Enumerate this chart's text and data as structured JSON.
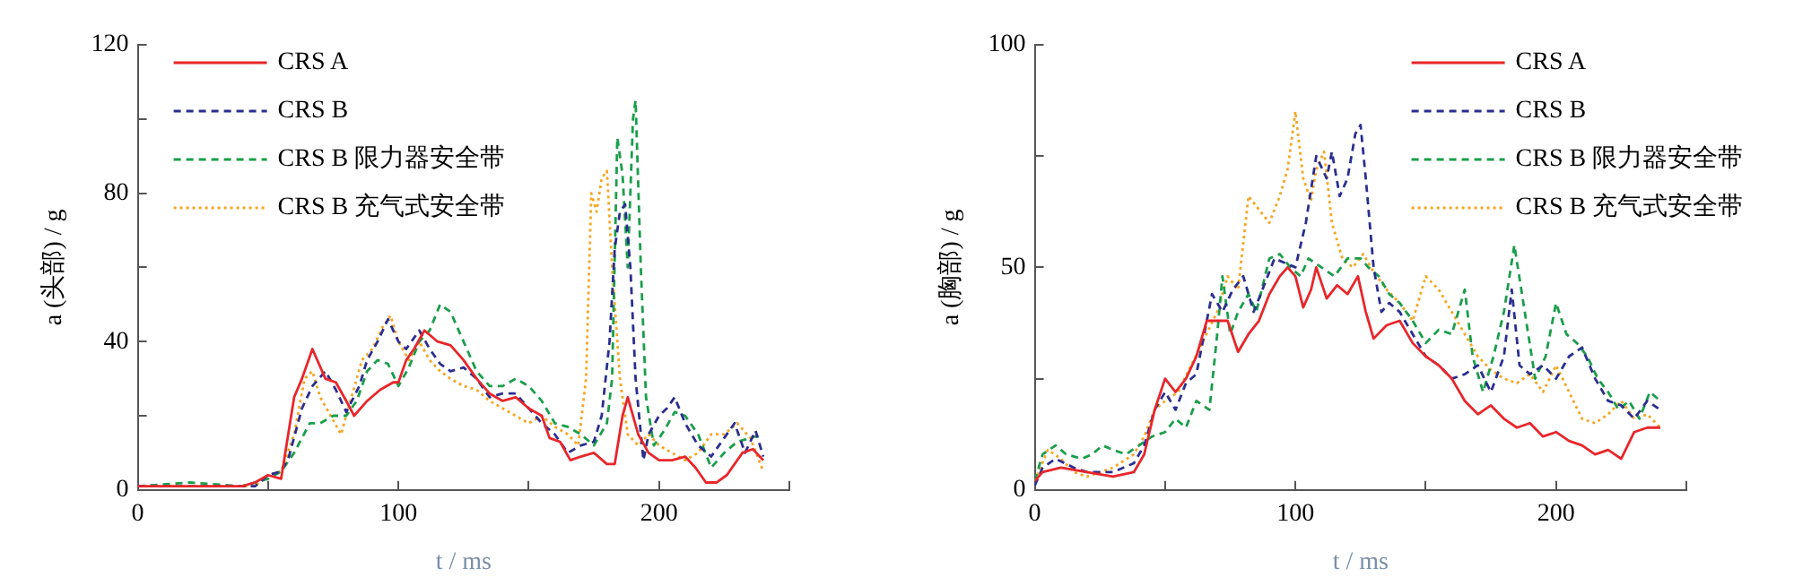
{
  "chart_data": [
    {
      "type": "line",
      "xlabel": "t / ms",
      "ylabel": "a (头部) / g",
      "xlim": [
        0,
        250
      ],
      "xticks": [
        0,
        {
          "value": 50,
          "label": null
        },
        100,
        {
          "value": 150,
          "label": null
        },
        200,
        {
          "value": 250,
          "label": null
        }
      ],
      "ylim": [
        0,
        120
      ],
      "yticks": [
        0,
        {
          "value": 20,
          "label": null
        },
        40,
        {
          "value": 60,
          "label": null
        },
        80,
        {
          "value": 100,
          "label": null
        },
        120
      ],
      "grid": false,
      "legend": "top left",
      "series": [
        {
          "name": "CRS A",
          "color": "#e8262b",
          "line_style": "solid",
          "x": [
            0,
            20,
            40,
            45,
            50,
            55,
            60,
            63,
            67,
            72,
            76,
            80,
            83,
            88,
            93,
            98,
            100,
            103,
            106,
            110,
            115,
            120,
            125,
            130,
            135,
            140,
            145,
            150,
            155,
            158,
            162,
            166,
            170,
            175,
            180,
            183,
            186,
            188,
            192,
            196,
            200,
            205,
            210,
            214,
            218,
            222,
            226,
            232,
            236,
            240
          ],
          "values": [
            1,
            1,
            1,
            2,
            4,
            3,
            25,
            30,
            38,
            30,
            29,
            24,
            20,
            24,
            27,
            29,
            29,
            35,
            38,
            43,
            40,
            39,
            35,
            30,
            26,
            24,
            25,
            22,
            20,
            14,
            13,
            8,
            9,
            10,
            7,
            7,
            20,
            25,
            15,
            10,
            8,
            8,
            9,
            6,
            2,
            2,
            4,
            10,
            11,
            8
          ]
        },
        {
          "name": "CRS B",
          "color": "#2b2e8f",
          "line_style": "dashed",
          "x": [
            0,
            20,
            45,
            50,
            55,
            58,
            63,
            67,
            72,
            76,
            80,
            85,
            88,
            92,
            96,
            100,
            103,
            108,
            112,
            116,
            120,
            125,
            130,
            135,
            140,
            145,
            150,
            155,
            160,
            165,
            170,
            175,
            178,
            181,
            183,
            185,
            187,
            189,
            191,
            194,
            196,
            200,
            203,
            206,
            210,
            215,
            220,
            225,
            229,
            233,
            237,
            240
          ],
          "values": [
            1,
            1,
            1,
            4,
            5,
            9,
            22,
            28,
            32,
            27,
            21,
            28,
            35,
            40,
            46,
            40,
            38,
            43,
            38,
            34,
            32,
            33,
            30,
            25,
            26,
            26,
            22,
            18,
            15,
            10,
            12,
            13,
            20,
            40,
            65,
            75,
            77,
            60,
            30,
            8,
            15,
            20,
            22,
            25,
            18,
            12,
            9,
            14,
            18,
            10,
            16,
            9
          ]
        },
        {
          "name": "CRS B 限力器安全带",
          "color": "#1a9e4a",
          "line_style": "dashed",
          "x": [
            0,
            20,
            40,
            50,
            55,
            60,
            66,
            70,
            75,
            80,
            84,
            88,
            92,
            96,
            100,
            104,
            108,
            112,
            116,
            120,
            125,
            130,
            135,
            140,
            145,
            150,
            155,
            160,
            165,
            170,
            175,
            180,
            182,
            184,
            186,
            188,
            190,
            191,
            193,
            195,
            198,
            202,
            206,
            210,
            215,
            220,
            225,
            230,
            235,
            240
          ],
          "values": [
            1,
            2,
            1,
            3,
            5,
            10,
            18,
            18,
            20,
            20,
            24,
            32,
            35,
            34,
            28,
            33,
            40,
            43,
            50,
            48,
            40,
            32,
            28,
            28,
            30,
            28,
            24,
            18,
            17,
            15,
            12,
            18,
            30,
            95,
            85,
            60,
            100,
            105,
            60,
            25,
            12,
            16,
            21,
            20,
            15,
            6,
            10,
            13,
            14,
            15
          ]
        },
        {
          "name": "CRS B 充气式安全带",
          "color": "#f5a623",
          "line_style": "dotted",
          "x": [
            0,
            20,
            45,
            50,
            55,
            60,
            64,
            67,
            70,
            74,
            78,
            82,
            86,
            90,
            94,
            97,
            100,
            104,
            108,
            112,
            116,
            120,
            125,
            130,
            135,
            140,
            145,
            150,
            155,
            160,
            165,
            169,
            172,
            174,
            176,
            178,
            180,
            182,
            185,
            188,
            192,
            196,
            200,
            205,
            210,
            215,
            220,
            225,
            230,
            235,
            240
          ],
          "values": [
            1,
            1,
            1,
            4,
            5,
            15,
            30,
            32,
            25,
            20,
            15,
            25,
            35,
            38,
            44,
            47,
            40,
            35,
            40,
            35,
            32,
            30,
            28,
            27,
            24,
            22,
            20,
            18,
            20,
            17,
            15,
            12,
            30,
            80,
            75,
            84,
            86,
            60,
            30,
            15,
            12,
            15,
            12,
            10,
            8,
            10,
            15,
            15,
            18,
            14,
            5
          ]
        }
      ]
    },
    {
      "type": "line",
      "xlabel": "t / ms",
      "ylabel": "a (胸部) / g",
      "xlim": [
        0,
        250
      ],
      "xticks": [
        0,
        {
          "value": 50,
          "label": null
        },
        100,
        {
          "value": 150,
          "label": null
        },
        200,
        {
          "value": 250,
          "label": null
        }
      ],
      "ylim": [
        0,
        100
      ],
      "yticks": [
        0,
        {
          "value": 25,
          "label": null
        },
        50,
        {
          "value": 75,
          "label": null
        },
        100
      ],
      "grid": false,
      "legend": "top right",
      "series": [
        {
          "name": "CRS A",
          "color": "#e8262b",
          "line_style": "solid",
          "x": [
            0,
            3,
            10,
            20,
            30,
            38,
            42,
            46,
            50,
            54,
            58,
            62,
            66,
            70,
            74,
            78,
            82,
            86,
            90,
            94,
            97,
            100,
            103,
            106,
            108,
            112,
            116,
            120,
            124,
            127,
            130,
            135,
            140,
            145,
            150,
            155,
            160,
            165,
            170,
            175,
            180,
            185,
            190,
            195,
            200,
            205,
            210,
            215,
            220,
            225,
            230,
            235,
            240
          ],
          "values": [
            2,
            4,
            5,
            4,
            3,
            4,
            8,
            18,
            25,
            22,
            25,
            30,
            38,
            38,
            38,
            31,
            35,
            38,
            44,
            48,
            50,
            48,
            41,
            45,
            50,
            43,
            46,
            44,
            48,
            40,
            34,
            37,
            38,
            33,
            30,
            28,
            25,
            20,
            17,
            19,
            16,
            14,
            15,
            12,
            13,
            11,
            10,
            8,
            9,
            7,
            13,
            14,
            14
          ]
        },
        {
          "name": "CRS B",
          "color": "#2b2e8f",
          "line_style": "dashed",
          "x": [
            0,
            3,
            8,
            15,
            20,
            30,
            38,
            42,
            46,
            50,
            54,
            58,
            62,
            66,
            68,
            72,
            76,
            80,
            84,
            88,
            92,
            96,
            100,
            104,
            108,
            112,
            114,
            117,
            120,
            123,
            125,
            127,
            130,
            133,
            136,
            140,
            145,
            150,
            155,
            160,
            165,
            170,
            175,
            180,
            183,
            186,
            190,
            195,
            200,
            205,
            210,
            215,
            220,
            225,
            230,
            235,
            240
          ],
          "values": [
            1,
            5,
            7,
            5,
            4,
            4,
            6,
            10,
            18,
            22,
            18,
            24,
            26,
            38,
            44,
            40,
            45,
            48,
            40,
            46,
            52,
            51,
            50,
            60,
            75,
            70,
            76,
            66,
            70,
            80,
            82,
            70,
            50,
            40,
            42,
            40,
            35,
            30,
            28,
            25,
            26,
            28,
            22,
            30,
            45,
            28,
            26,
            28,
            25,
            30,
            32,
            25,
            20,
            19,
            16,
            20,
            18
          ]
        },
        {
          "name": "CRS B 限力器安全带",
          "color": "#1a9e4a",
          "line_style": "dashed",
          "x": [
            0,
            3,
            8,
            12,
            18,
            22,
            26,
            30,
            35,
            40,
            45,
            50,
            54,
            58,
            62,
            67,
            70,
            72,
            75,
            78,
            82,
            85,
            90,
            94,
            98,
            102,
            105,
            110,
            115,
            120,
            125,
            128,
            132,
            136,
            140,
            145,
            150,
            155,
            160,
            165,
            168,
            172,
            176,
            180,
            184,
            188,
            192,
            196,
            200,
            204,
            208,
            212,
            216,
            220,
            224,
            228,
            232,
            236,
            240
          ],
          "values": [
            2,
            8,
            10,
            8,
            7,
            8,
            10,
            9,
            8,
            10,
            12,
            13,
            16,
            14,
            20,
            18,
            35,
            48,
            35,
            40,
            44,
            40,
            52,
            53,
            50,
            48,
            52,
            50,
            48,
            52,
            52,
            50,
            48,
            44,
            42,
            38,
            33,
            36,
            35,
            45,
            30,
            22,
            30,
            40,
            55,
            40,
            25,
            30,
            42,
            35,
            33,
            30,
            25,
            22,
            18,
            20,
            16,
            22,
            20
          ]
        },
        {
          "name": "CRS B 充气式安全带",
          "color": "#f5a623",
          "line_style": "dotted",
          "x": [
            0,
            5,
            10,
            15,
            20,
            30,
            38,
            42,
            46,
            50,
            55,
            60,
            65,
            70,
            74,
            78,
            82,
            86,
            90,
            94,
            97,
            100,
            103,
            106,
            108,
            111,
            114,
            118,
            122,
            126,
            130,
            135,
            140,
            145,
            150,
            155,
            160,
            165,
            170,
            175,
            180,
            185,
            190,
            195,
            200,
            205,
            210,
            215,
            220,
            225,
            230,
            235,
            240
          ],
          "values": [
            2,
            9,
            7,
            4,
            3,
            5,
            8,
            12,
            18,
            20,
            22,
            28,
            34,
            40,
            48,
            45,
            66,
            63,
            60,
            66,
            72,
            85,
            70,
            65,
            72,
            76,
            60,
            52,
            50,
            53,
            49,
            45,
            42,
            38,
            48,
            45,
            40,
            35,
            30,
            27,
            25,
            24,
            26,
            22,
            28,
            22,
            16,
            15,
            17,
            20,
            16,
            17,
            14
          ]
        }
      ]
    }
  ]
}
